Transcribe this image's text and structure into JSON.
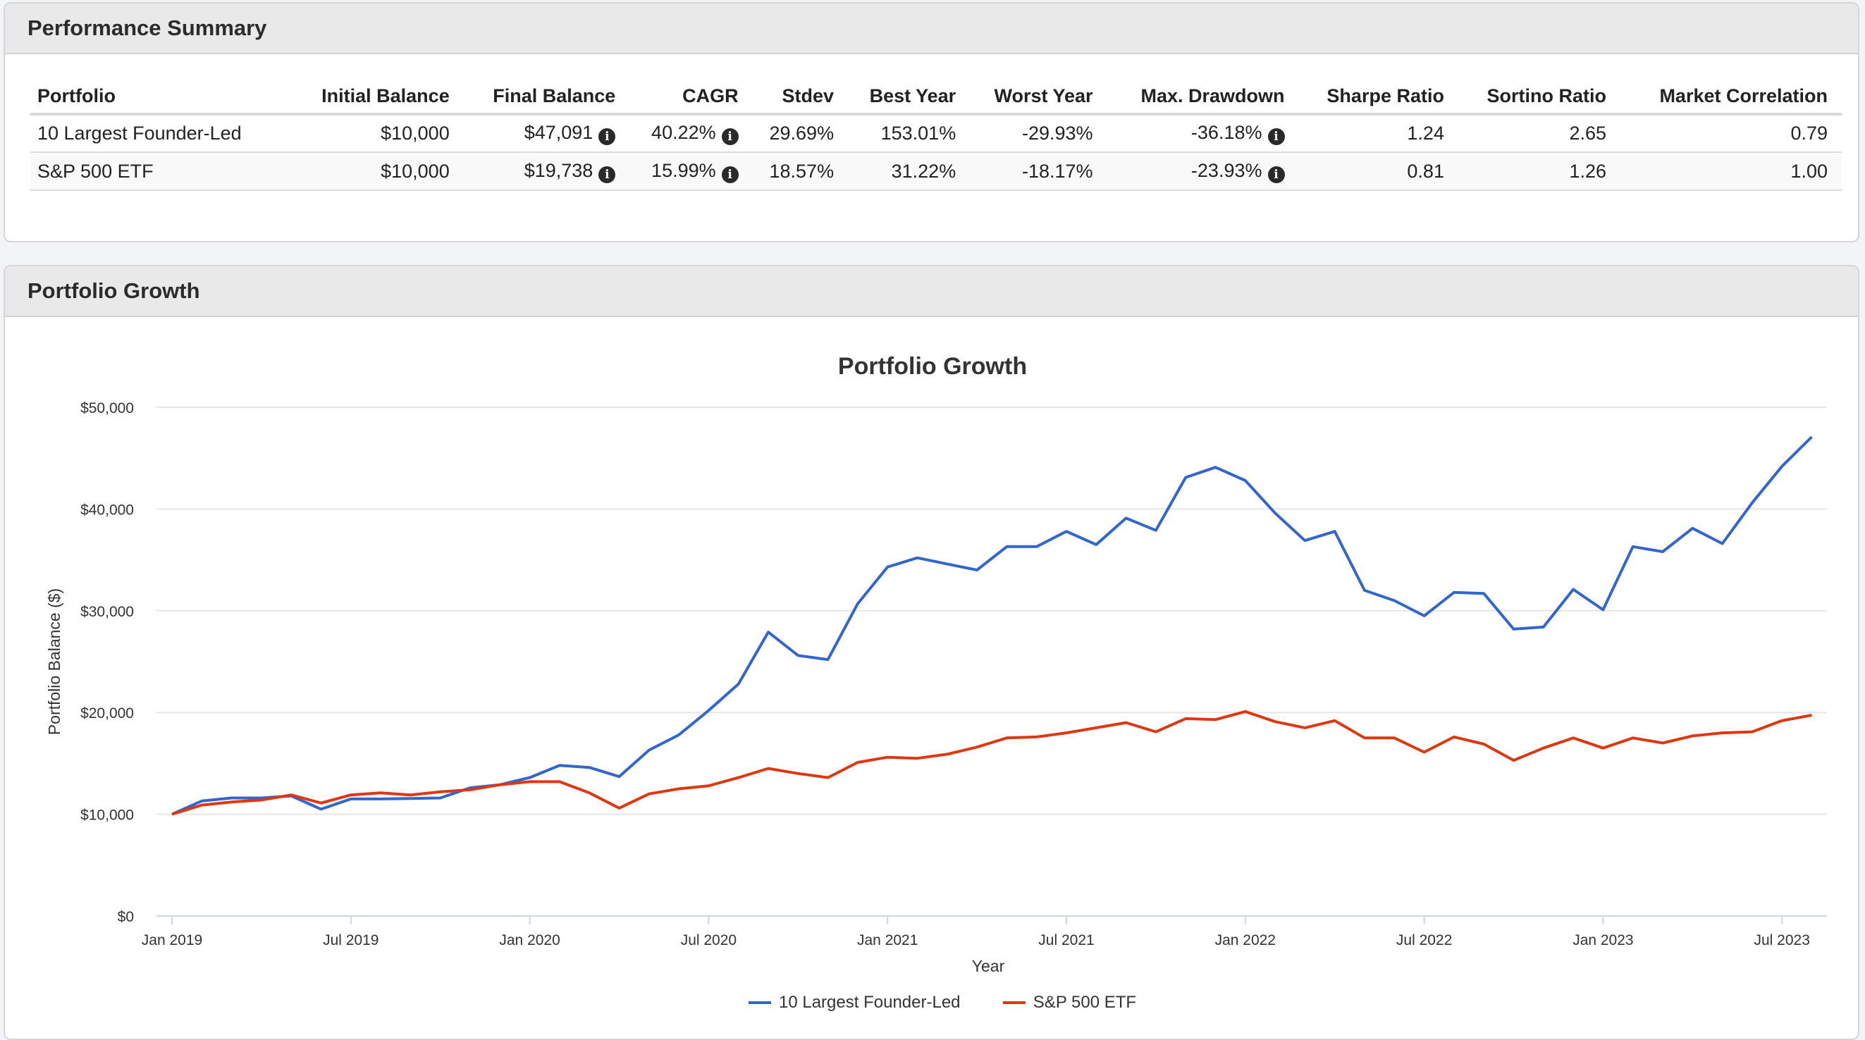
{
  "summary": {
    "title": "Performance Summary",
    "columns": [
      "Portfolio",
      "Initial Balance",
      "Final Balance",
      "CAGR",
      "Stdev",
      "Best Year",
      "Worst Year",
      "Max. Drawdown",
      "Sharpe Ratio",
      "Sortino Ratio",
      "Market Correlation"
    ],
    "rows": [
      {
        "portfolio": "10 Largest Founder-Led",
        "initial": "$10,000",
        "final": "$47,091",
        "cagr": "40.22%",
        "stdev": "29.69%",
        "best": "153.01%",
        "worst": "-29.93%",
        "drawdown": "-36.18%",
        "sharpe": "1.24",
        "sortino": "2.65",
        "correlation": "0.79"
      },
      {
        "portfolio": "S&P 500 ETF",
        "initial": "$10,000",
        "final": "$19,738",
        "cagr": "15.99%",
        "stdev": "18.57%",
        "best": "31.22%",
        "worst": "-18.17%",
        "drawdown": "-23.93%",
        "sharpe": "0.81",
        "sortino": "1.26",
        "correlation": "1.00"
      }
    ],
    "info_icon": "info-circle-icon"
  },
  "growth": {
    "title": "Portfolio Growth"
  },
  "chart_data": {
    "type": "line",
    "title": "Portfolio Growth",
    "xlabel": "Year",
    "ylabel": "Portfolio Balance ($)",
    "ylim": [
      0,
      50000
    ],
    "yticks": [
      "$0",
      "$10,000",
      "$20,000",
      "$30,000",
      "$40,000",
      "$50,000"
    ],
    "xticks": [
      "Jan 2019",
      "Jul 2019",
      "Jan 2020",
      "Jul 2020",
      "Jan 2021",
      "Jul 2021",
      "Jan 2022",
      "Jul 2022",
      "Jan 2023",
      "Jul 2023"
    ],
    "x_start": "Jan 2019",
    "x_end": "Aug 2023",
    "legend_position": "bottom-center",
    "grid": true,
    "series": [
      {
        "name": "10 Largest Founder-Led",
        "color": "#3366cc",
        "values": [
          10000,
          11300,
          11600,
          11600,
          11800,
          10500,
          11500,
          11500,
          11550,
          11600,
          12600,
          12900,
          13600,
          14800,
          14600,
          13700,
          16300,
          17800,
          20200,
          22800,
          27900,
          25600,
          25200,
          30700,
          34300,
          35200,
          34600,
          34000,
          36300,
          36300,
          37800,
          36500,
          39100,
          37900,
          43100,
          44100,
          42800,
          39600,
          36900,
          37800,
          32000,
          31000,
          29500,
          31800,
          31700,
          28200,
          28400,
          32100,
          30100,
          36300,
          35800,
          38100,
          36600,
          40600,
          44200,
          47091
        ]
      },
      {
        "name": "S&P 500 ETF",
        "color": "#dc3912",
        "values": [
          10000,
          10900,
          11200,
          11400,
          11900,
          11100,
          11900,
          12100,
          11900,
          12200,
          12400,
          12900,
          13200,
          13200,
          12100,
          10600,
          12000,
          12500,
          12800,
          13600,
          14500,
          14000,
          13600,
          15100,
          15600,
          15500,
          15900,
          16600,
          17500,
          17600,
          18000,
          18500,
          19000,
          18100,
          19400,
          19300,
          20100,
          19100,
          18500,
          19200,
          17500,
          17500,
          16100,
          17600,
          16900,
          15300,
          16500,
          17500,
          16500,
          17500,
          17000,
          17700,
          18000,
          18100,
          19200,
          19738
        ]
      }
    ]
  }
}
